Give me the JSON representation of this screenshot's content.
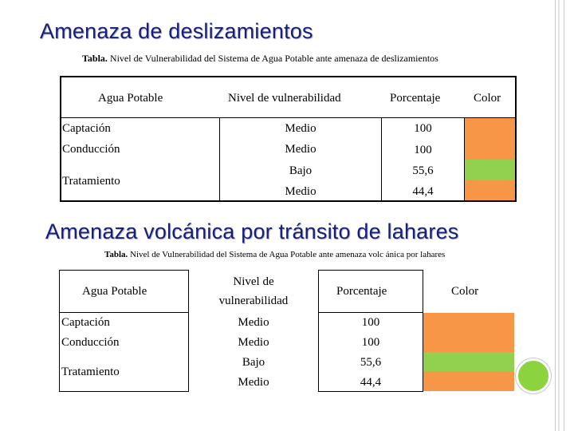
{
  "colors": {
    "heading": "#16207a",
    "medio": "#f79646",
    "bajo": "#92d050"
  },
  "section1": {
    "title": "Amenaza de deslizamientos",
    "caption_bold": "Tabla.",
    "caption_rest": " Nivel de Vulnerabilidad del Sistema de Agua Potable ante amenaza de deslizamientos",
    "headers": [
      "Agua Potable",
      "Nivel de vulnerabilidad",
      "Porcentaje",
      "Color"
    ],
    "components": [
      "Captación",
      "Conducción",
      "Tratamiento"
    ],
    "levels": [
      "Medio",
      "Medio",
      "Bajo",
      "Medio"
    ],
    "percentages": [
      "100",
      "100",
      "55,6",
      "44,4"
    ],
    "swatches": [
      "medio",
      "medio",
      "bajo",
      "medio"
    ]
  },
  "section2": {
    "title": "Amenaza volcánica por tránsito de lahares",
    "caption_bold": "Tabla.",
    "caption_rest": " Nivel de Vulnerabilidad del Sistema de Agua Potable ante amenaza volc ánica por lahares",
    "headers": [
      "Agua Potable",
      "Nivel de",
      "vulnerabilidad",
      "Porcentaje",
      "Color"
    ],
    "components": [
      "Captación",
      "Conducción",
      "Tratamiento"
    ],
    "levels": [
      "Medio",
      "Medio",
      "Bajo",
      "Medio"
    ],
    "percentages": [
      "100",
      "100",
      "55,6",
      "44,4"
    ],
    "swatches": [
      "medio",
      "medio",
      "bajo",
      "medio"
    ]
  }
}
